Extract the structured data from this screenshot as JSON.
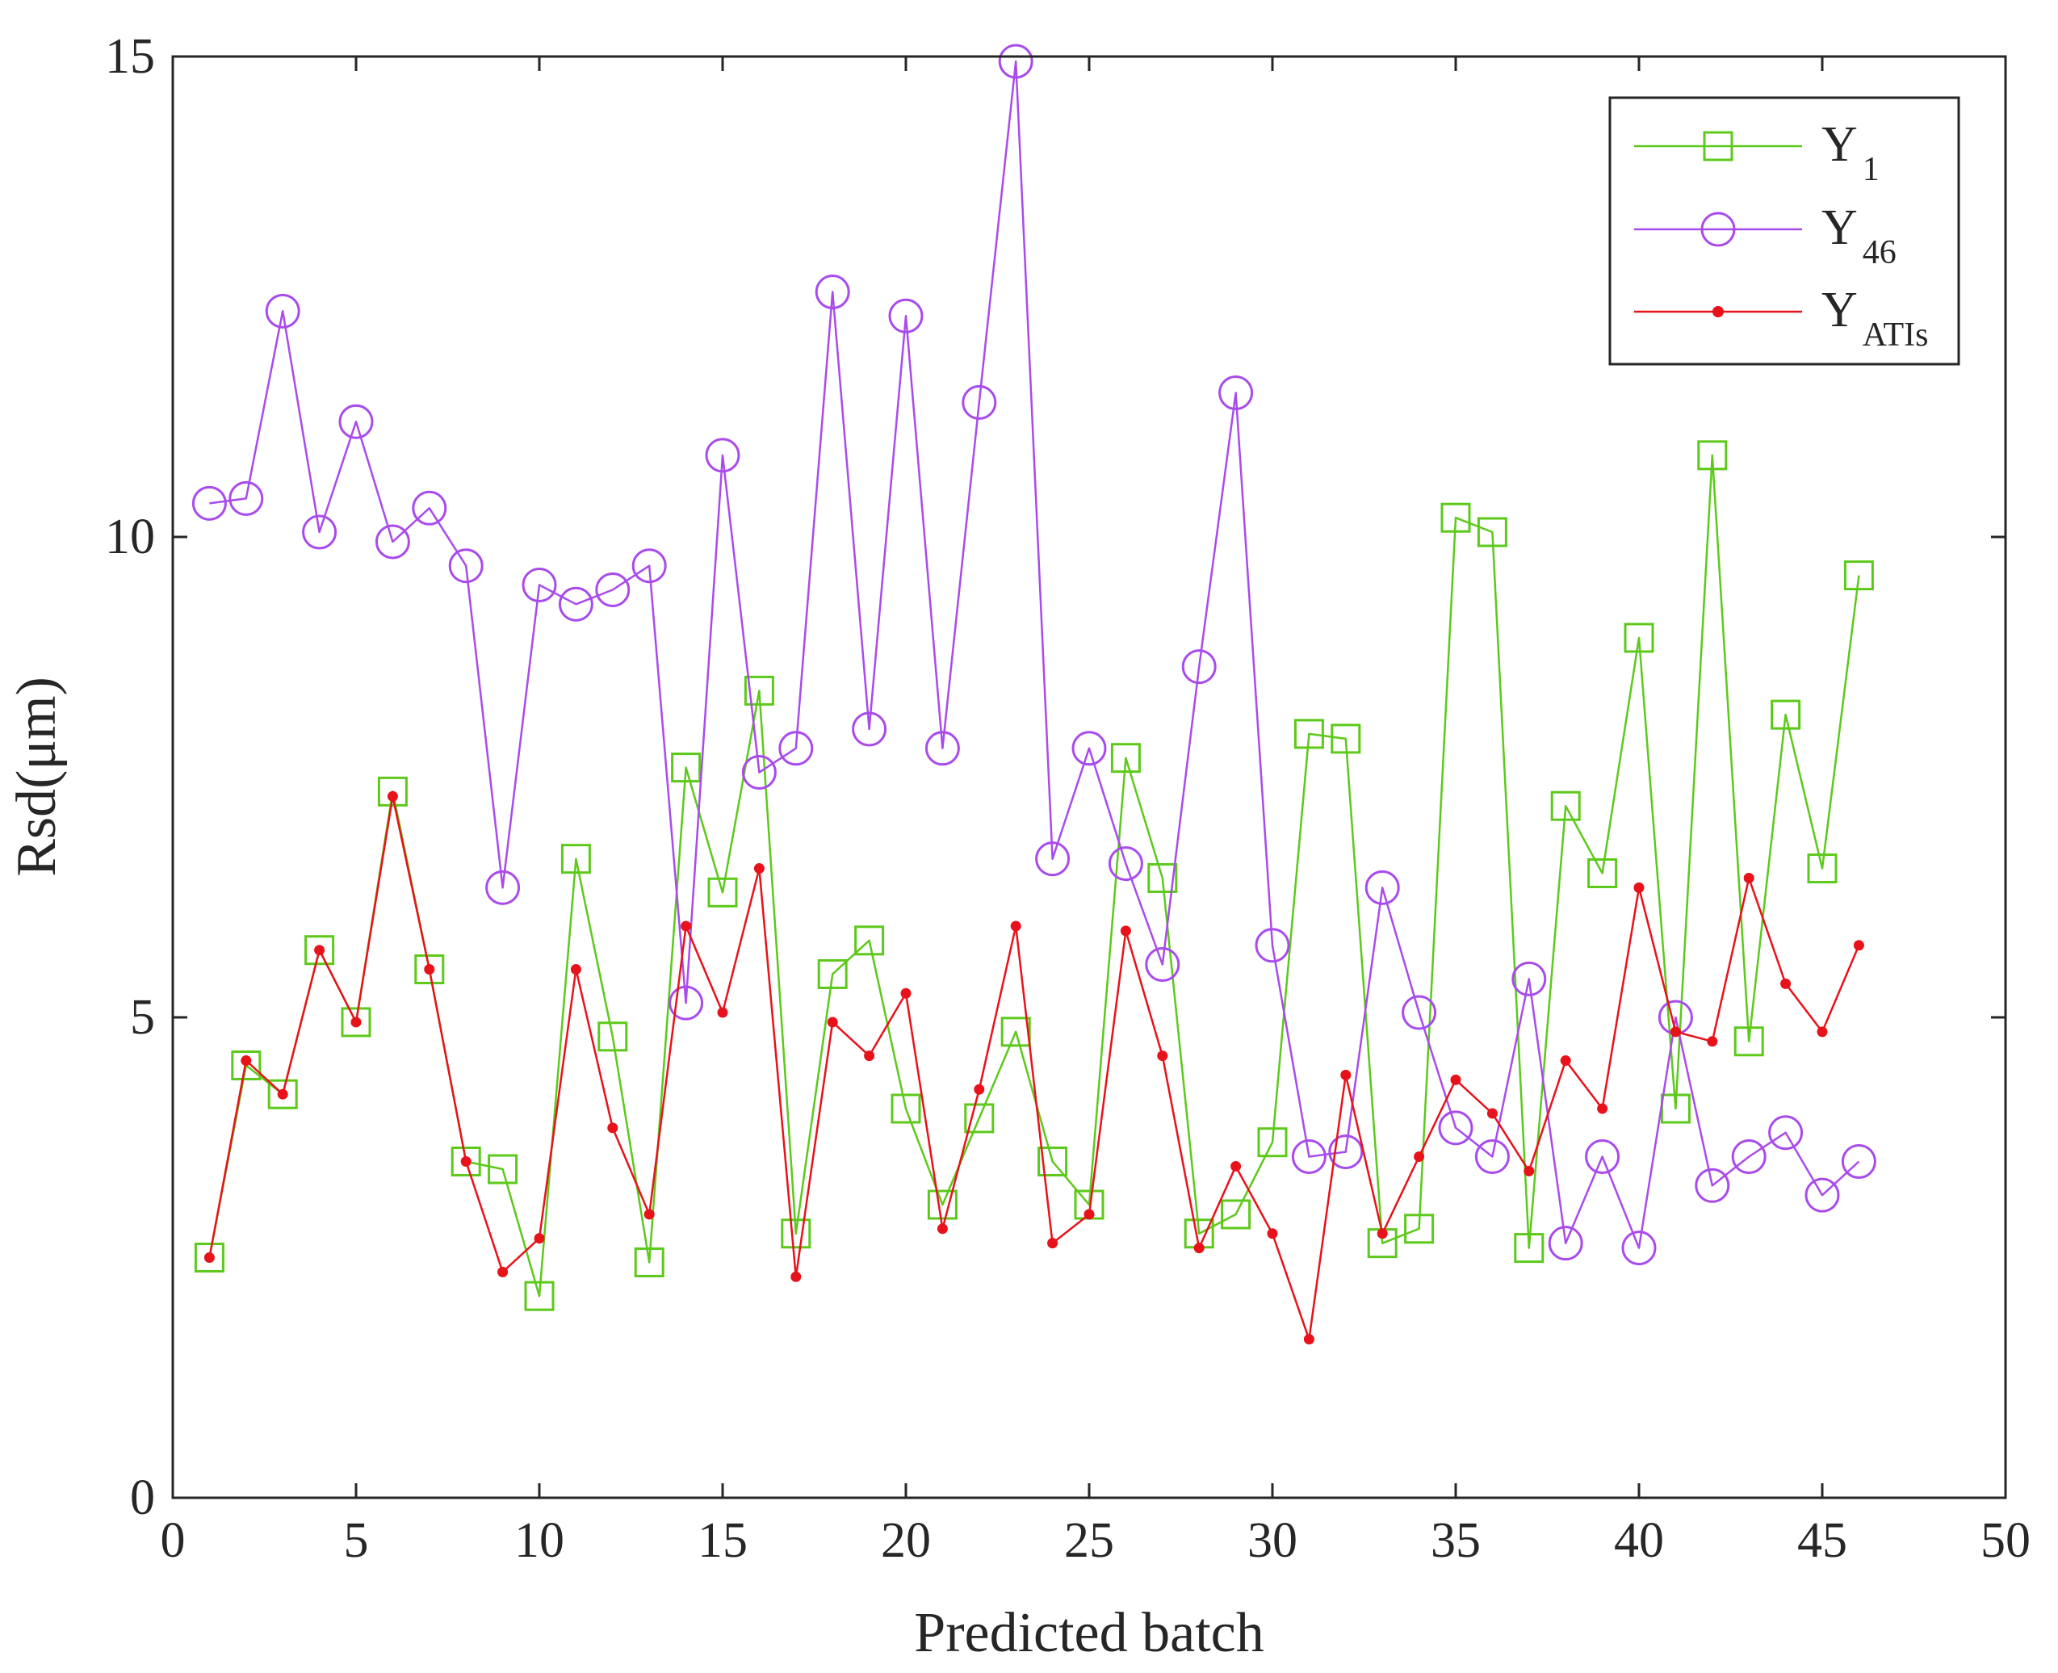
{
  "chart_data": {
    "type": "line",
    "title": "",
    "xlabel": "Predicted batch",
    "ylabel": "Rsd(μm)",
    "xlim": [
      0,
      50
    ],
    "ylim": [
      0,
      15
    ],
    "x_ticks": [
      0,
      5,
      10,
      15,
      20,
      25,
      30,
      35,
      40,
      45,
      50
    ],
    "y_ticks": [
      0,
      5,
      10,
      15
    ],
    "x_tick_labels": [
      "0",
      "5",
      "10",
      "15",
      "20",
      "25",
      "30",
      "35",
      "40",
      "45",
      "50"
    ],
    "y_tick_labels": [
      "0",
      "5",
      "10",
      "15"
    ],
    "grid": false,
    "legend_position": "top-right",
    "x": [
      1,
      2,
      3,
      4,
      5,
      6,
      7,
      8,
      9,
      10,
      11,
      12,
      13,
      14,
      15,
      16,
      17,
      18,
      19,
      20,
      21,
      22,
      23,
      24,
      25,
      26,
      27,
      28,
      29,
      30,
      31,
      32,
      33,
      34,
      35,
      36,
      37,
      38,
      39,
      40,
      41,
      42,
      43,
      44,
      45,
      46
    ],
    "series": [
      {
        "name": "Y1",
        "legend_base": "Y",
        "legend_sub": "1",
        "color": "#5dc91b",
        "marker": "square",
        "values": [
          2.5,
          4.5,
          4.2,
          5.7,
          4.95,
          7.35,
          5.5,
          3.5,
          3.42,
          2.1,
          6.65,
          4.8,
          2.45,
          7.6,
          6.3,
          8.4,
          2.75,
          5.45,
          5.8,
          4.05,
          3.05,
          3.95,
          4.85,
          3.5,
          3.05,
          7.7,
          6.45,
          2.75,
          2.95,
          3.7,
          7.95,
          7.9,
          2.65,
          2.8,
          10.2,
          10.05,
          2.6,
          7.2,
          6.5,
          8.95,
          4.05,
          10.85,
          4.75,
          8.15,
          6.55,
          9.6
        ]
      },
      {
        "name": "Y46",
        "legend_base": "Y",
        "legend_sub": "46",
        "color": "#a94bec",
        "marker": "circle",
        "values": [
          10.35,
          10.4,
          12.35,
          10.05,
          11.2,
          9.95,
          10.3,
          9.7,
          6.35,
          9.5,
          9.3,
          9.45,
          9.7,
          5.15,
          10.85,
          7.55,
          7.8,
          12.55,
          8.0,
          12.3,
          7.8,
          11.4,
          14.95,
          6.65,
          7.8,
          6.6,
          5.55,
          8.65,
          11.5,
          5.75,
          3.55,
          3.6,
          6.35,
          5.05,
          3.85,
          3.55,
          5.4,
          2.65,
          3.55,
          2.6,
          5.0,
          3.25,
          3.55,
          3.8,
          3.15,
          3.5
        ]
      },
      {
        "name": "YATIs",
        "legend_base": "Y",
        "legend_sub": "ATIs",
        "color": "#e8121a",
        "marker": "dot",
        "values": [
          2.5,
          4.55,
          4.2,
          5.7,
          4.95,
          7.3,
          5.5,
          3.5,
          2.35,
          2.7,
          5.5,
          3.85,
          2.95,
          5.95,
          5.05,
          6.55,
          2.3,
          4.95,
          4.6,
          5.25,
          2.8,
          4.25,
          5.95,
          2.65,
          2.95,
          5.9,
          4.6,
          2.6,
          3.45,
          2.75,
          1.65,
          4.4,
          2.75,
          3.55,
          4.35,
          4.0,
          3.4,
          4.55,
          4.05,
          6.35,
          4.85,
          4.75,
          6.45,
          5.35,
          4.85,
          5.75
        ]
      }
    ]
  }
}
